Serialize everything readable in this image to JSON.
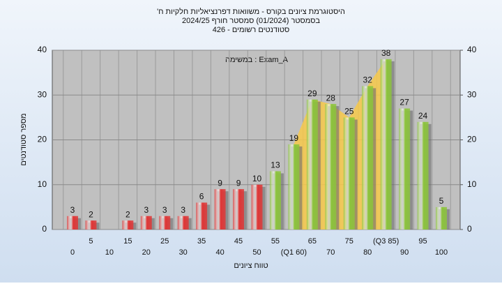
{
  "chart_data": {
    "type": "bar",
    "title": [
      "'היסטוגרמת ציונים בקורס - משוואות דפרנציאליות חלקיות ח",
      "בסמסטר  (01/2024)  סמסטר חורף 2024/25",
      "סטודנטים רשומים - 426"
    ],
    "annotation": "במשימה : Exam_A",
    "x_label": "טווח ציונים",
    "y_label": "מספר סטודנטים",
    "categories": [
      "0",
      "5",
      "10",
      "15",
      "20",
      "25",
      "30",
      "35",
      "40",
      "45",
      "50",
      "55",
      "(Q1 60)",
      "65",
      "70",
      "75",
      "80",
      "(Q3 85)",
      "90",
      "95",
      "100"
    ],
    "values": [
      3,
      2,
      null,
      2,
      3,
      3,
      3,
      6,
      9,
      9,
      10,
      13,
      19,
      29,
      28,
      25,
      32,
      38,
      27,
      24,
      5
    ],
    "colors": [
      "#e03535",
      "#e03535",
      "#e03535",
      "#e03535",
      "#e03535",
      "#e03535",
      "#e03535",
      "#e03535",
      "#e03535",
      "#e03535",
      "#e03535",
      "#8cc43c",
      "#8cc43c",
      "#8cc43c",
      "#8cc43c",
      "#8cc43c",
      "#8cc43c",
      "#8cc43c",
      "#8cc43c",
      "#8cc43c",
      "#8cc43c"
    ],
    "shade_color": "#f7c94a",
    "ylim": [
      0,
      40
    ],
    "yticks": [
      0,
      10,
      20,
      30,
      40
    ],
    "y2lim": [
      0,
      40
    ],
    "y2ticks": [
      0,
      10,
      20,
      30,
      40
    ],
    "grid": true
  }
}
